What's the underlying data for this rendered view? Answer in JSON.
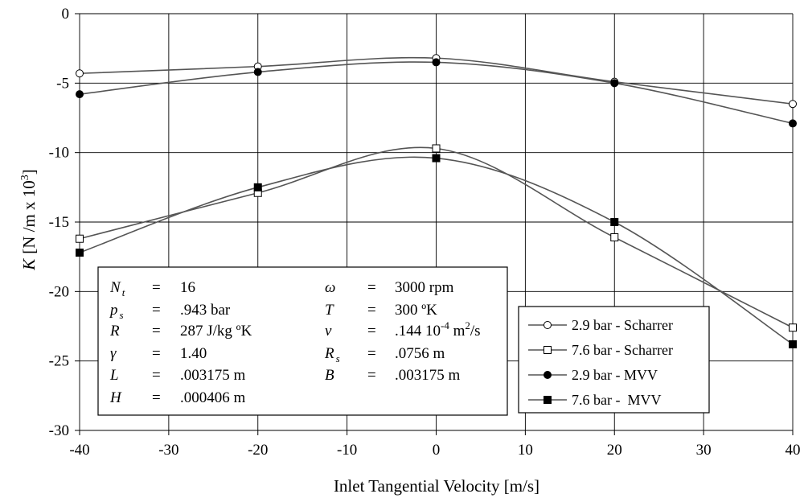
{
  "chart_data": {
    "type": "line",
    "xlabel": "Inlet Tangential Velocity [m/s]",
    "ylabel_symbol": "K",
    "ylabel_units": "[N /m x 10",
    "ylabel_exp": "3",
    "ylabel_close": "]",
    "xlim": [
      -40,
      40
    ],
    "ylim": [
      -30,
      0
    ],
    "xticks": [
      -40,
      -30,
      -20,
      -10,
      0,
      10,
      20,
      30,
      40
    ],
    "yticks": [
      0,
      -5,
      -10,
      -15,
      -20,
      -25,
      -30
    ],
    "grid": true,
    "legend_position": "bottom-right",
    "series": [
      {
        "name": "2.9 bar - Scharrer",
        "marker": "open-circle",
        "x": [
          -40,
          -20,
          0,
          20,
          40
        ],
        "y": [
          -4.3,
          -3.8,
          -3.2,
          -4.9,
          -6.5
        ]
      },
      {
        "name": "7.6 bar - Scharrer",
        "marker": "open-square",
        "x": [
          -40,
          -20,
          0,
          20,
          40
        ],
        "y": [
          -16.2,
          -12.9,
          -9.7,
          -16.1,
          -22.6
        ]
      },
      {
        "name": "2.9 bar - MVV",
        "marker": "filled-circle",
        "x": [
          -40,
          -20,
          0,
          20,
          40
        ],
        "y": [
          -5.8,
          -4.2,
          -3.5,
          -5.0,
          -7.9
        ]
      },
      {
        "name": "7.6 bar -  MVV",
        "marker": "filled-square",
        "x": [
          -40,
          -20,
          0,
          20,
          40
        ],
        "y": [
          -17.2,
          -12.5,
          -10.4,
          -15.0,
          -23.8
        ]
      }
    ],
    "parameters": [
      {
        "sym": "N",
        "sub": "t",
        "eq": "=",
        "val": "16",
        "val_sup": "",
        "val_after": ""
      },
      {
        "sym": "p",
        "sub": "s",
        "eq": "=",
        "val": ".943 bar",
        "val_sup": "",
        "val_after": ""
      },
      {
        "sym": "R",
        "sub": "",
        "eq": "=",
        "val": "287 J/kg ºK",
        "val_sup": "",
        "val_after": ""
      },
      {
        "sym": "γ",
        "sub": "",
        "eq": "=",
        "val": "1.40",
        "val_sup": "",
        "val_after": ""
      },
      {
        "sym": "L",
        "sub": "",
        "eq": "=",
        "val": ".003175 m",
        "val_sup": "",
        "val_after": ""
      },
      {
        "sym": "H",
        "sub": "",
        "eq": "=",
        "val": ".000406 m",
        "val_sup": "",
        "val_after": ""
      },
      {
        "sym": "ω",
        "sub": "",
        "eq": "=",
        "val": "3000 rpm",
        "val_sup": "",
        "val_after": ""
      },
      {
        "sym": "T",
        "sub": "",
        "eq": "=",
        "val": "300 ºK",
        "val_sup": "",
        "val_after": ""
      },
      {
        "sym": "ν",
        "sub": "",
        "eq": "=",
        "val": ".144 10",
        "val_sup": "-4",
        "val_after": " m",
        "val_sup2": "2",
        "val_tail": "/s"
      },
      {
        "sym": "R",
        "sub": "s",
        "eq": "=",
        "val": ".0756 m",
        "val_sup": "",
        "val_after": ""
      },
      {
        "sym": "B",
        "sub": "",
        "eq": "=",
        "val": ".003175 m",
        "val_sup": "",
        "val_after": ""
      }
    ]
  }
}
